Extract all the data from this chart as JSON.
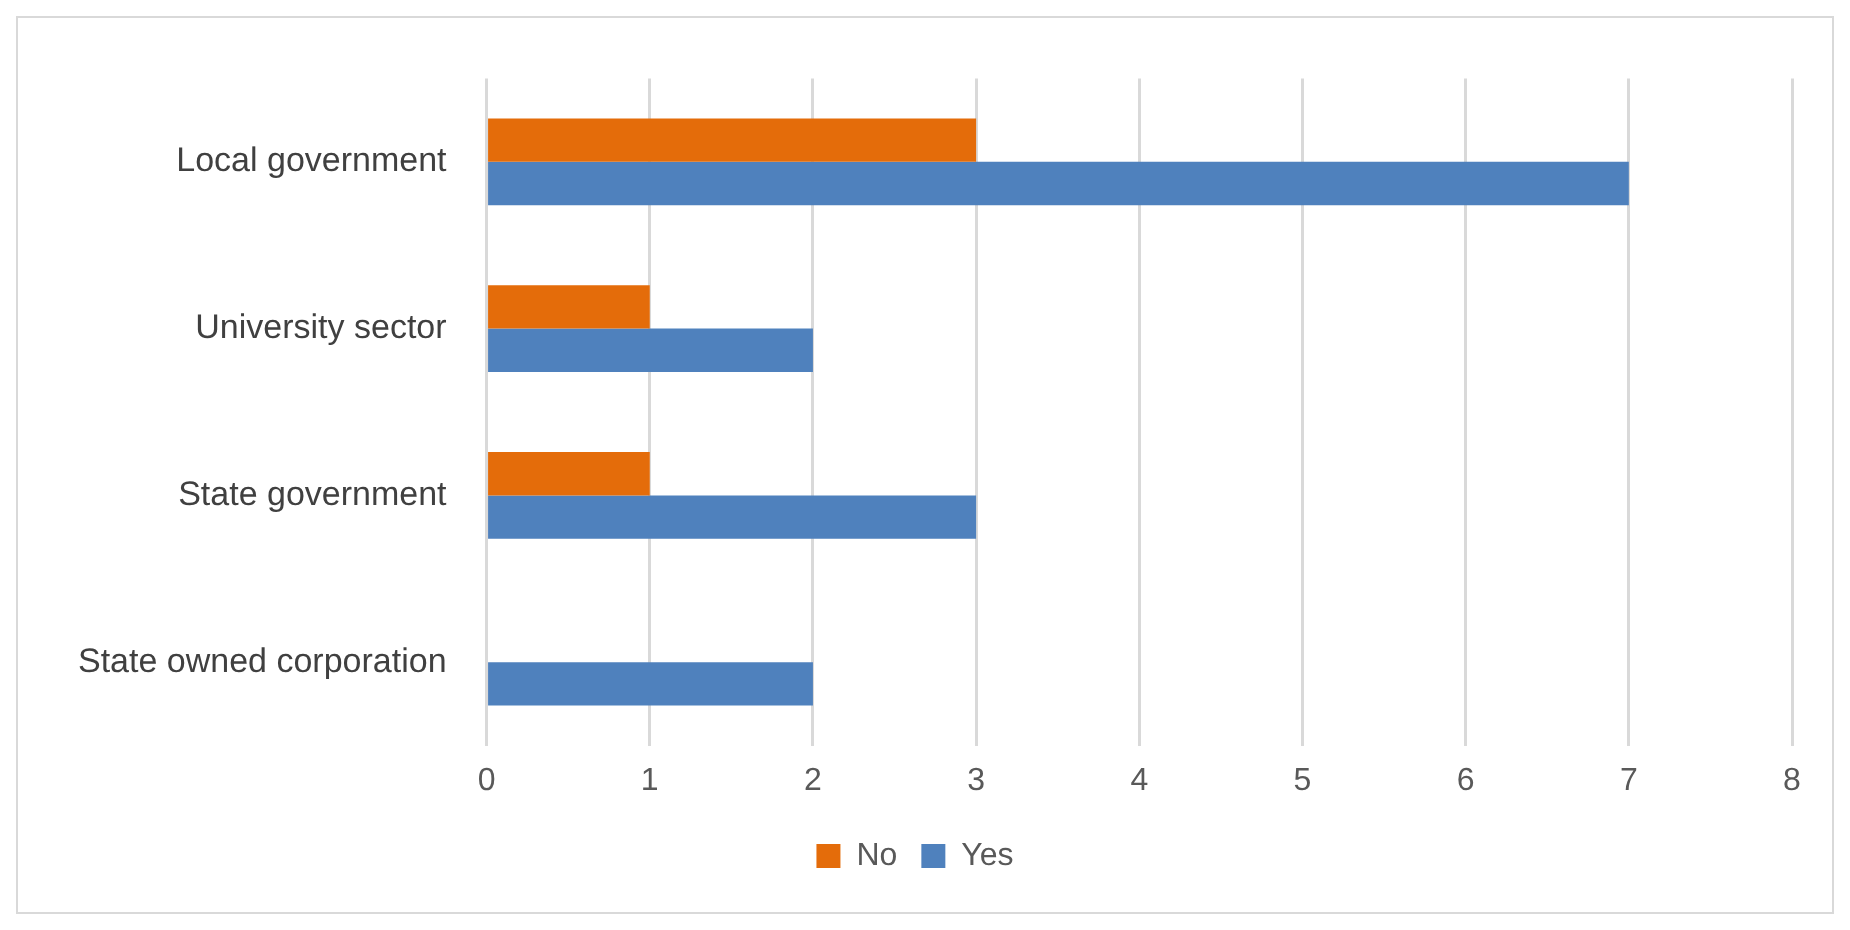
{
  "chart_data": {
    "type": "bar",
    "orientation": "horizontal",
    "categories": [
      "Local government",
      "University sector",
      "State government",
      "State owned corporation"
    ],
    "series": [
      {
        "name": "No",
        "color": "#e46c0a",
        "values": [
          3,
          1,
          1,
          null
        ]
      },
      {
        "name": "Yes",
        "color": "#4f81bd",
        "values": [
          7,
          2,
          3,
          2
        ]
      }
    ],
    "xlim": [
      0,
      8
    ],
    "xticks": [
      0,
      1,
      2,
      3,
      4,
      5,
      6,
      7,
      8
    ],
    "grid": "x",
    "legend": "bottom"
  }
}
